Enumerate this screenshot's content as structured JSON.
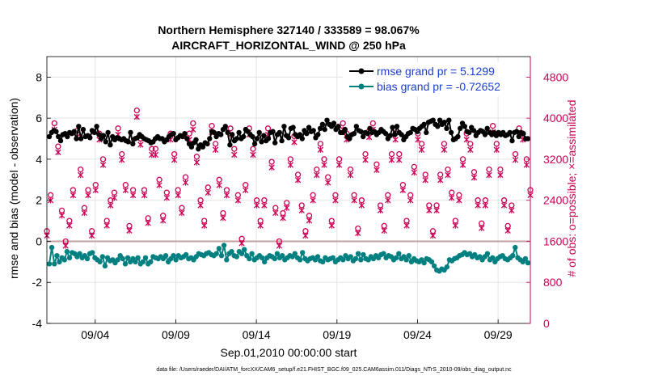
{
  "chart_data": {
    "type": "line",
    "title_line1": "Northern Hemisphere 327140 / 333589 = 98.067%",
    "title_line2": "AIRCRAFT_HORIZONTAL_WIND @ 250 hPa",
    "xlabel": "Sep.01,2010 00:00:00 start",
    "ylabel_left": "rmse and bias (model - observation)",
    "ylabel_right": "# of obs: o=possible; ×=assimilated",
    "ylim_left": [
      -4,
      9
    ],
    "ylim_right": [
      0,
      5200
    ],
    "yticks_left": [
      -4,
      -2,
      0,
      2,
      4,
      6,
      8
    ],
    "yticks_right": [
      0,
      800,
      1600,
      2400,
      3200,
      4000,
      4800
    ],
    "xlim": [
      1.0,
      31.0
    ],
    "xticks": [
      {
        "x": 4,
        "label": "09/04"
      },
      {
        "x": 9,
        "label": "09/09"
      },
      {
        "x": 14,
        "label": "09/14"
      },
      {
        "x": 19,
        "label": "09/19"
      },
      {
        "x": 24,
        "label": "09/24"
      },
      {
        "x": 29,
        "label": "09/29"
      }
    ],
    "grid": true,
    "legend_position": "top-right",
    "colors": {
      "rmse": "#000000",
      "bias": "#008080",
      "obs": "#cc0055",
      "zero_line": "#c0a0a0",
      "grid": "#e3e3e3"
    },
    "series": [
      {
        "name": "rmse grand pr = 5.1299",
        "axis": "left",
        "values": [
          5.1,
          5.3,
          5.4,
          5.35,
          5.1,
          4.9,
          5.2,
          5.25,
          5.1,
          5.3,
          5.25,
          5.35,
          5.0,
          5.6,
          5.0,
          5.45,
          5.1,
          5.15,
          5.05,
          5.4,
          5.3,
          5.6,
          5.2,
          5.0,
          5.15,
          4.85,
          5.3,
          4.7,
          5.1,
          4.95,
          5.05,
          5.0,
          4.95,
          5.0,
          4.9,
          4.85,
          5.3,
          4.75,
          5.0,
          5.05,
          5.2,
          5.1,
          5.0,
          4.95,
          4.9,
          4.8,
          4.85,
          5.0,
          5.1,
          5.0,
          5.0,
          4.85,
          4.95,
          5.1,
          5.2,
          5.25,
          4.95,
          5.05,
          5.15,
          5.1,
          5.25,
          5.0,
          4.75,
          4.6,
          4.8,
          4.95,
          4.5,
          4.7,
          4.6,
          4.8,
          4.75,
          5.0,
          5.35,
          5.3,
          5.1,
          5.25,
          5.2,
          5.45,
          5.6,
          5.3,
          4.7,
          5.2,
          4.9,
          5.0,
          5.3,
          5.0,
          5.1,
          5.45,
          5.35,
          5.2,
          5.1,
          4.75,
          5.0,
          5.3,
          4.85,
          5.15,
          4.9,
          5.0,
          5.3,
          5.35,
          4.8,
          5.2,
          5.3,
          4.9,
          5.6,
          5.15,
          5.05,
          5.5,
          5.55,
          5.2,
          5.1,
          5.2,
          5.0,
          5.4,
          5.25,
          5.55,
          5.35,
          5.4,
          5.05,
          5.2,
          5.5,
          5.7,
          5.45,
          5.9,
          5.7,
          5.6,
          5.75,
          5.45,
          5.6,
          5.3,
          5.3,
          5.45,
          5.1,
          5.0,
          5.2,
          5.25,
          5.6,
          5.4,
          5.35,
          5.1,
          5.3,
          5.25,
          5.5,
          5.3,
          5.35,
          5.2,
          5.3,
          5.45,
          5.35,
          5.25,
          5.0,
          5.15,
          5.55,
          5.2,
          5.6,
          5.3,
          5.2,
          4.95,
          5.1,
          5.25,
          5.3,
          5.5,
          5.45,
          5.35,
          5.5,
          5.6,
          5.7,
          5.3,
          5.8,
          5.85,
          5.9,
          5.7,
          5.6,
          5.9,
          5.7,
          5.8,
          5.5,
          5.9,
          5.3,
          4.95,
          5.0,
          5.1,
          5.5,
          5.75,
          5.6,
          5.35,
          5.3,
          5.55,
          5.4,
          5.15,
          5.3,
          5.4,
          5.35,
          5.2,
          5.5,
          5.3,
          5.2,
          5.3,
          5.15,
          5.3,
          5.2,
          5.3,
          5.15,
          5.2,
          5.3,
          4.9,
          5.3,
          5.35,
          5.1,
          5.3,
          5.25,
          5.0,
          5.0
        ]
      },
      {
        "name": "bias grand pr = -0.72652",
        "axis": "left",
        "values": [
          -1.1,
          -0.3,
          -1.1,
          -0.7,
          -1.0,
          -0.8,
          -0.9,
          -0.5,
          -0.8,
          -0.55,
          -0.6,
          -0.75,
          -0.6,
          -0.8,
          -0.7,
          -0.85,
          -0.6,
          -0.55,
          -0.8,
          -0.9,
          -1.0,
          -0.75,
          -1.2,
          -0.8,
          -0.95,
          -0.9,
          -1.05,
          -0.9,
          -0.7,
          -0.85,
          -1.1,
          -0.8,
          -1.0,
          -0.85,
          -1.0,
          -0.8,
          -1.1,
          -1.0,
          -0.8,
          -1.1,
          -1.0,
          -0.75,
          -0.8,
          -0.85,
          -0.75,
          -0.85,
          -0.7,
          -1.0,
          -0.85,
          -0.7,
          -0.9,
          -0.7,
          -0.8,
          -0.75,
          -0.65,
          -0.85,
          -0.8,
          -0.9,
          -0.75,
          -0.6,
          -0.65,
          -0.7,
          -0.6,
          -0.55,
          -0.65,
          -0.7,
          -0.6,
          -0.35,
          -0.7,
          -0.2,
          -0.9,
          -0.6,
          -0.5,
          -0.7,
          -0.75,
          -0.5,
          -0.6,
          -0.4,
          -0.7,
          -0.85,
          -0.6,
          -0.9,
          -0.8,
          -0.7,
          -0.8,
          -1.0,
          -0.8,
          -0.7,
          -0.75,
          -0.85,
          -0.6,
          -0.8,
          -0.7,
          -0.9,
          -0.8,
          -0.7,
          -0.75,
          -0.6,
          -0.8,
          -0.9,
          -0.55,
          -0.85,
          -0.95,
          -0.85,
          -0.8,
          -0.9,
          -0.75,
          -0.95,
          -1.0,
          -0.8,
          -0.9,
          -0.85,
          -0.8,
          -1.0,
          -0.9,
          -0.8,
          -0.9,
          -0.7,
          -0.85,
          -0.75,
          -0.95,
          -0.85,
          -0.6,
          -0.9,
          -0.65,
          -0.85,
          -0.9,
          -0.75,
          -0.85,
          -0.7,
          -0.8,
          -0.65,
          -0.6,
          -0.8,
          -0.7,
          -0.75,
          -0.9,
          -0.8,
          -0.6,
          -0.85,
          -0.75,
          -0.9,
          -0.7,
          -1.0,
          -0.85,
          -0.95,
          -1.0,
          -0.9,
          -1.05,
          -0.85,
          -0.9,
          -1.0,
          -1.2,
          -1.4,
          -1.45,
          -1.35,
          -1.4,
          -1.25,
          -0.9,
          -0.95,
          -0.85,
          -0.8,
          -0.7,
          -0.65,
          -0.55,
          -0.65,
          -0.6,
          -0.75,
          -0.65,
          -0.8,
          -0.75,
          -0.9,
          -0.75,
          -0.6,
          -0.9,
          -0.8,
          -1.0,
          -0.85,
          -0.75,
          -0.7,
          -0.85,
          -0.9,
          -0.8,
          -0.7,
          -0.3,
          -0.8,
          -0.9,
          -1.0,
          -0.85,
          -1.05
        ]
      },
      {
        "name": "obs possible (o)",
        "axis": "right",
        "values": [
          1800,
          2500,
          3900,
          3450,
          2200,
          1600,
          2000,
          2600,
          3750,
          3000,
          2250,
          2600,
          1800,
          2700,
          3700,
          3200,
          2000,
          2400,
          2550,
          3800,
          3300,
          2700,
          1900,
          2600,
          4150,
          3600,
          2600,
          2050,
          3400,
          3400,
          2800,
          2100,
          2550,
          3700,
          3300,
          2600,
          2250,
          2850,
          3700,
          3900,
          3250,
          2400,
          2000,
          2650,
          3850,
          3500,
          2800,
          2150,
          2600,
          3800,
          3400,
          2500,
          1650,
          2700,
          3800,
          3400,
          2400,
          2000,
          2400,
          3800,
          3150,
          2250,
          1600,
          2150,
          2350,
          3200,
          3650,
          2900,
          2300,
          1800,
          2100,
          2500,
          3000,
          3500,
          3200,
          2850,
          2000,
          2500,
          3200,
          3900,
          3700,
          3000,
          2500,
          1850,
          2400,
          3300,
          3750,
          3900,
          3100,
          2300,
          1900,
          2500,
          3300,
          3700,
          3300,
          2700,
          2000,
          2500,
          3050,
          3700,
          3500,
          2900,
          2300,
          1800,
          2300,
          2900,
          3500,
          3000,
          2550,
          2000,
          2500,
          3200,
          3700,
          3500,
          2950,
          2400,
          1950,
          2400,
          3000,
          3850,
          3500,
          3000,
          2400,
          1900,
          2300,
          3300,
          3800,
          3700,
          3200,
          2600
        ]
      }
    ],
    "legend": [
      {
        "label": "rmse grand pr = 5.1299",
        "series": "rmse"
      },
      {
        "label": "bias grand pr = -0.72652",
        "series": "bias"
      }
    ]
  },
  "footer": "data file: /Users/raeder/DAI/ATM_forcXX/CAM6_setup/f.e21.FHIST_BGC.f09_025.CAM6assim.011/Diags_NTrS_2010-09/obs_diag_output.nc"
}
